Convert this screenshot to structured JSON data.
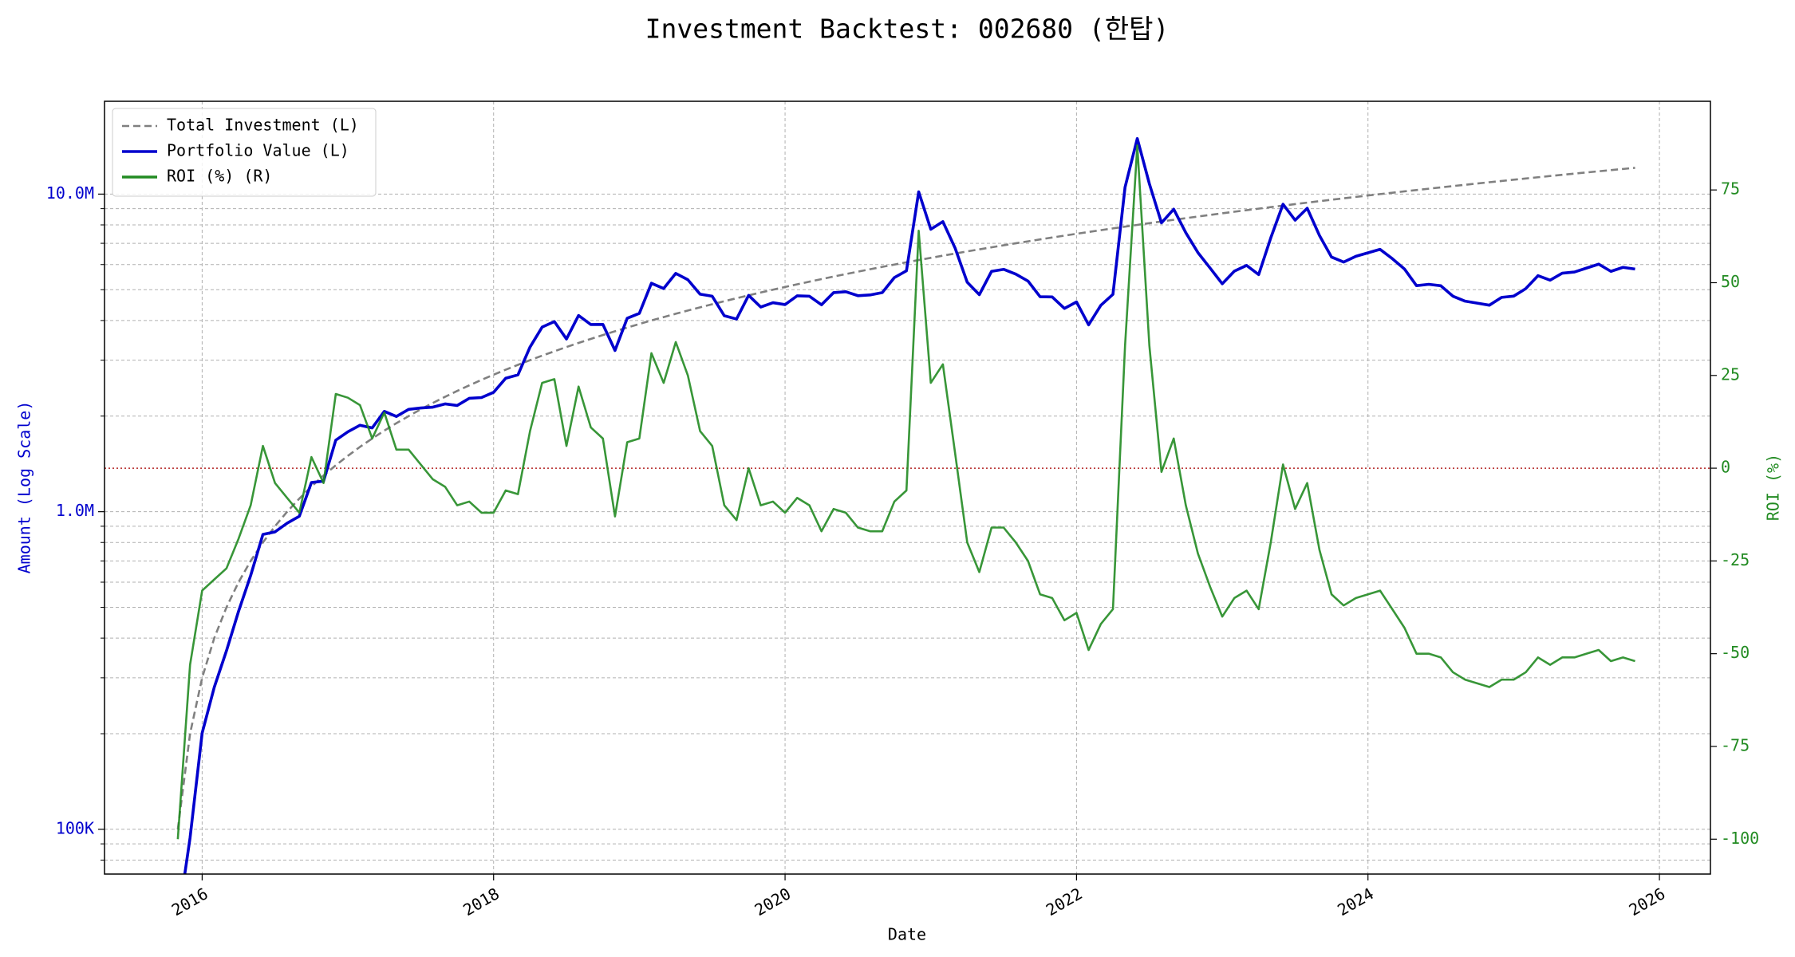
{
  "chart_data": {
    "type": "line",
    "title": "Investment Backtest: 002680 (한탑)",
    "x_label": "Date",
    "y_label": "Amount (Log Scale)",
    "y2_label": "ROI (%)",
    "x": [
      2015.833,
      2015.917,
      2016.0,
      2016.083,
      2016.167,
      2016.25,
      2016.333,
      2016.417,
      2016.5,
      2016.583,
      2016.667,
      2016.75,
      2016.833,
      2016.917,
      2017.0,
      2017.083,
      2017.167,
      2017.25,
      2017.333,
      2017.417,
      2017.5,
      2017.583,
      2017.667,
      2017.75,
      2017.833,
      2017.917,
      2018.0,
      2018.083,
      2018.167,
      2018.25,
      2018.333,
      2018.417,
      2018.5,
      2018.583,
      2018.667,
      2018.75,
      2018.833,
      2018.917,
      2019.0,
      2019.083,
      2019.167,
      2019.25,
      2019.333,
      2019.417,
      2019.5,
      2019.583,
      2019.667,
      2019.75,
      2019.833,
      2019.917,
      2020.0,
      2020.083,
      2020.167,
      2020.25,
      2020.333,
      2020.417,
      2020.5,
      2020.583,
      2020.667,
      2020.75,
      2020.833,
      2020.917,
      2021.0,
      2021.083,
      2021.167,
      2021.25,
      2021.333,
      2021.417,
      2021.5,
      2021.583,
      2021.667,
      2021.75,
      2021.833,
      2021.917,
      2022.0,
      2022.083,
      2022.167,
      2022.25,
      2022.333,
      2022.417,
      2022.5,
      2022.583,
      2022.667,
      2022.75,
      2022.833,
      2022.917,
      2023.0,
      2023.083,
      2023.167,
      2023.25,
      2023.333,
      2023.417,
      2023.5,
      2023.583,
      2023.667,
      2023.75,
      2023.833,
      2023.917,
      2024.0,
      2024.083,
      2024.167,
      2024.25,
      2024.333,
      2024.417,
      2024.5,
      2024.583,
      2024.667,
      2024.75,
      2024.833,
      2024.917,
      2025.0,
      2025.083,
      2025.167,
      2025.25,
      2025.333,
      2025.417,
      2025.5,
      2025.583,
      2025.667,
      2025.75,
      2025.833
    ],
    "xlim": [
      2015.33,
      2026.35
    ],
    "xticks": [
      2016,
      2018,
      2020,
      2022,
      2024,
      2026
    ],
    "yscale": "log",
    "ylim": [
      72300,
      19600000
    ],
    "yticks": [
      {
        "value": 100000,
        "label": "100K"
      },
      {
        "value": 1000000,
        "label": "1.0M"
      },
      {
        "value": 10000000,
        "label": "10.0M"
      }
    ],
    "yminorticks": [
      80000,
      90000,
      200000,
      300000,
      400000,
      500000,
      600000,
      700000,
      800000,
      900000,
      2000000,
      3000000,
      4000000,
      5000000,
      6000000,
      7000000,
      8000000,
      9000000
    ],
    "y2lim": [
      -109.4,
      98.9
    ],
    "y2ticks": [
      -100,
      -75,
      -50,
      -25,
      0,
      25,
      50,
      75
    ],
    "grid": true,
    "legend": "upper left",
    "reference_line": {
      "axis": "y2",
      "value": 0,
      "color": "#b22222"
    },
    "series": [
      {
        "name": "Total Investment (L)",
        "color": "#808080",
        "linestyle": "dashed",
        "axis": "y",
        "values": [
          100000,
          200000,
          300000,
          400000,
          500000,
          600000,
          700000,
          800000,
          900000,
          1000000,
          1100000,
          1200000,
          1300000,
          1400000,
          1500000,
          1600000,
          1700000,
          1800000,
          1900000,
          2000000,
          2100000,
          2200000,
          2300000,
          2400000,
          2500000,
          2600000,
          2700000,
          2800000,
          2900000,
          3000000,
          3100000,
          3200000,
          3300000,
          3400000,
          3500000,
          3600000,
          3700000,
          3800000,
          3900000,
          4000000,
          4100000,
          4200000,
          4300000,
          4400000,
          4500000,
          4600000,
          4700000,
          4800000,
          4900000,
          5000000,
          5100000,
          5200000,
          5300000,
          5400000,
          5500000,
          5600000,
          5700000,
          5800000,
          5900000,
          6000000,
          6100000,
          6200000,
          6300000,
          6400000,
          6500000,
          6600000,
          6700000,
          6800000,
          6900000,
          7000000,
          7100000,
          7200000,
          7300000,
          7400000,
          7500000,
          7600000,
          7700000,
          7800000,
          7900000,
          8000000,
          8100000,
          8200000,
          8300000,
          8400000,
          8500000,
          8600000,
          8700000,
          8800000,
          8900000,
          9000000,
          9100000,
          9200000,
          9300000,
          9400000,
          9500000,
          9600000,
          9700000,
          9800000,
          9900000,
          10000000,
          10100000,
          10200000,
          10300000,
          10400000,
          10500000,
          10600000,
          10700000,
          10800000,
          10900000,
          11000000,
          11100000,
          11200000,
          11300000,
          11400000,
          11500000,
          11600000,
          11700000,
          11800000,
          11900000,
          12000000,
          12100000
        ]
      },
      {
        "name": "Portfolio Value (L)",
        "color": "#0000cd",
        "linestyle": "solid",
        "axis": "y",
        "values": [
          0,
          94000,
          201000,
          280000,
          365000,
          486000,
          630000,
          848000,
          864000,
          920000,
          968000,
          1236000,
          1248000,
          1680000,
          1785000,
          1872000,
          1836000,
          2070000,
          1995000,
          2100000,
          2121000,
          2134000,
          2185000,
          2160000,
          2275000,
          2288000,
          2376000,
          2632000,
          2697000,
          3300000,
          3813000,
          3968000,
          3498000,
          4148000,
          3885000,
          3888000,
          3219000,
          4066000,
          4212000,
          5240000,
          5043000,
          5628000,
          5375000,
          4840000,
          4770000,
          4140000,
          4042000,
          4800000,
          4410000,
          4550000,
          4488000,
          4784000,
          4770000,
          4482000,
          4895000,
          4928000,
          4788000,
          4814000,
          4897000,
          5460000,
          5734000,
          10168000,
          7749000,
          8192000,
          6760000,
          5280000,
          4824000,
          5712000,
          5796000,
          5600000,
          5325000,
          4752000,
          4745000,
          4366000,
          4575000,
          3876000,
          4466000,
          4836000,
          10507000,
          14960000,
          10773000,
          8118000,
          8964000,
          7560000,
          6545000,
          5848000,
          5220000,
          5720000,
          5963000,
          5580000,
          7280000,
          9292000,
          8277000,
          9024000,
          7410000,
          6336000,
          6111000,
          6370000,
          6534000,
          6700000,
          6262000,
          5814000,
          5150000,
          5200000,
          5145000,
          4770000,
          4601000,
          4536000,
          4469000,
          4730000,
          4773000,
          5040000,
          5537000,
          5358000,
          5635000,
          5684000,
          5850000,
          6018000,
          5712000,
          5880000,
          5808000
        ]
      },
      {
        "name": "ROI (%) (R)",
        "color": "#228b22",
        "linestyle": "solid",
        "axis": "y2",
        "values": [
          -100,
          -53,
          -33,
          -30,
          -27,
          -19,
          -10,
          6,
          -4,
          -8,
          -12,
          3,
          -4,
          20,
          19,
          17,
          8,
          15,
          5,
          5,
          1,
          -3,
          -5,
          -10,
          -9,
          -12,
          -12,
          -6,
          -7,
          10,
          23,
          24,
          6,
          22,
          11,
          8,
          -13,
          7,
          8,
          31,
          23,
          34,
          25,
          10,
          6,
          -10,
          -14,
          0,
          -10,
          -9,
          -12,
          -8,
          -10,
          -17,
          -11,
          -12,
          -16,
          -17,
          -17,
          -9,
          -6,
          64,
          23,
          28,
          4,
          -20,
          -28,
          -16,
          -16,
          -20,
          -25,
          -34,
          -35,
          -41,
          -39,
          -49,
          -42,
          -38,
          33,
          87,
          33,
          -1,
          8,
          -10,
          -23,
          -32,
          -40,
          -35,
          -33,
          -38,
          -20,
          1,
          -11,
          -4,
          -22,
          -34,
          -37,
          -35,
          -34,
          -33,
          -38,
          -43,
          -50,
          -50,
          -51,
          -55,
          -57,
          -58,
          -59,
          -57,
          -57,
          -55,
          -51,
          -53,
          -51,
          -51,
          -50,
          -49,
          -52,
          -51,
          -52
        ]
      }
    ]
  }
}
